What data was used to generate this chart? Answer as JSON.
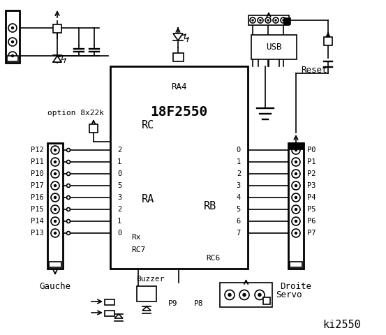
{
  "bg_color": "#ffffff",
  "title": "ki2550",
  "chip_label": "18F2550",
  "chip_sublabel": "RA4",
  "rc_pins": [
    "2",
    "1",
    "0",
    "5",
    "3",
    "2",
    "1",
    "0"
  ],
  "rc_labels": [
    "P12",
    "P11",
    "P10",
    "P17",
    "P16",
    "P15",
    "P14",
    "P13"
  ],
  "rb_pins": [
    "0",
    "1",
    "2",
    "3",
    "4",
    "5",
    "6",
    "7"
  ],
  "rb_labels": [
    "P0",
    "P1",
    "P2",
    "P3",
    "P4",
    "P5",
    "P6",
    "P7"
  ],
  "option_label": "option 8x22k",
  "gauche_label": "Gauche",
  "droite_label": "Droite",
  "servo_label": "Servo",
  "buzzer_label": "Buzzer",
  "usb_label": "USB",
  "reset_label": "Reset",
  "p8_label": "P8",
  "p9_label": "P9",
  "ra_label": "RA",
  "rc_label": "RC",
  "rb_label": "RB",
  "rx_label": "Rx",
  "rc7_label": "RC7",
  "rc6_label": "RC6"
}
